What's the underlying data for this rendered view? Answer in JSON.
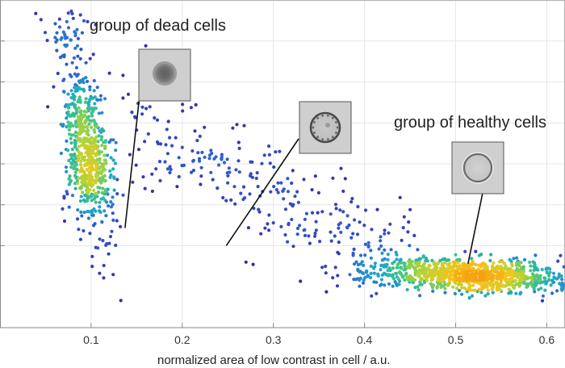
{
  "chart_data": {
    "type": "scatter",
    "title": "",
    "xlabel": "normalized area of low contrast in cell / a.u.",
    "ylabel": "",
    "xlim": [
      0.0,
      0.62
    ],
    "ylim": [
      0.0,
      1.0
    ],
    "x_ticks": [
      0.1,
      0.2,
      0.3,
      0.4,
      0.5,
      0.6
    ],
    "x_tick_labels": [
      "0.1",
      "0.2",
      "0.3",
      "0.4",
      "0.5",
      "0.6"
    ],
    "y_gridlines": [
      0.25,
      0.375,
      0.5,
      0.625,
      0.75,
      0.875
    ],
    "grid": true,
    "colormap": [
      "#3b1f9a",
      "#2f5fd1",
      "#1fa3c7",
      "#3dc48a",
      "#b5d334",
      "#f3c51e",
      "#f5a20f"
    ],
    "clusters": [
      {
        "name": "dead cells",
        "center": [
          0.1,
          0.44
        ],
        "spread": [
          0.012,
          0.12
        ],
        "count": 700
      },
      {
        "name": "healthy cells",
        "center": [
          0.52,
          0.16
        ],
        "spread": [
          0.055,
          0.025
        ],
        "count": 1000
      },
      {
        "name": "intermediate",
        "range_x": [
          0.14,
          0.47
        ],
        "trend": "y decreases from 0.62 to 0.18 as x increases",
        "count": 280
      }
    ],
    "annotations": [
      {
        "label": "group of dead cells",
        "target": [
          0.1,
          0.43
        ]
      },
      {
        "label": "group of healthy cells",
        "target": [
          0.51,
          0.18
        ]
      },
      {
        "label": "",
        "target": [
          0.235,
          0.42
        ],
        "note": "intermediate cell"
      }
    ],
    "thumbnails": [
      {
        "name": "dead-cell",
        "style": "dark-filled"
      },
      {
        "name": "intermediate-cell",
        "style": "granular-ring"
      },
      {
        "name": "healthy-cell",
        "style": "clear-ring"
      }
    ]
  }
}
